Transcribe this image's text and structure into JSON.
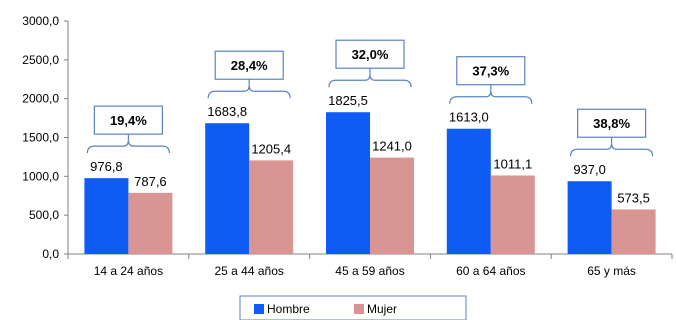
{
  "chart_data": {
    "type": "bar",
    "categories": [
      "14 a 24 años",
      "25 a 44 años",
      "45  a  59 años",
      "60 a 64 años",
      "65 y más"
    ],
    "series": [
      {
        "name": "Hombre",
        "values": [
          976.8,
          1683.8,
          1825.5,
          1613.0,
          937.0
        ],
        "labels": [
          "976,8",
          "1683,8",
          "1825,5",
          "1613,0",
          "937,0"
        ],
        "color": "#0f5cf5"
      },
      {
        "name": "Mujer",
        "values": [
          787.6,
          1205.4,
          1241.0,
          1011.1,
          573.5
        ],
        "labels": [
          "787,6",
          "1205,4",
          "1241,0",
          "1011,1",
          "573,5"
        ],
        "color": "#d99594"
      }
    ],
    "annotations": [
      "19,4%",
      "28,4%",
      "32,0%",
      "37,3%",
      "38,8%"
    ],
    "y_ticks": [
      0,
      500,
      1000,
      1500,
      2000,
      2500,
      3000
    ],
    "y_tick_labels": [
      "0,0",
      "500,0",
      "1000,0",
      "1500,0",
      "2000,0",
      "2500,0",
      "3000,0"
    ],
    "ylim": [
      0,
      3000
    ],
    "title": "",
    "xlabel": "",
    "ylabel": "",
    "grid": false,
    "legend_position": "bottom",
    "annotation_box_color": "#5b82c4"
  }
}
